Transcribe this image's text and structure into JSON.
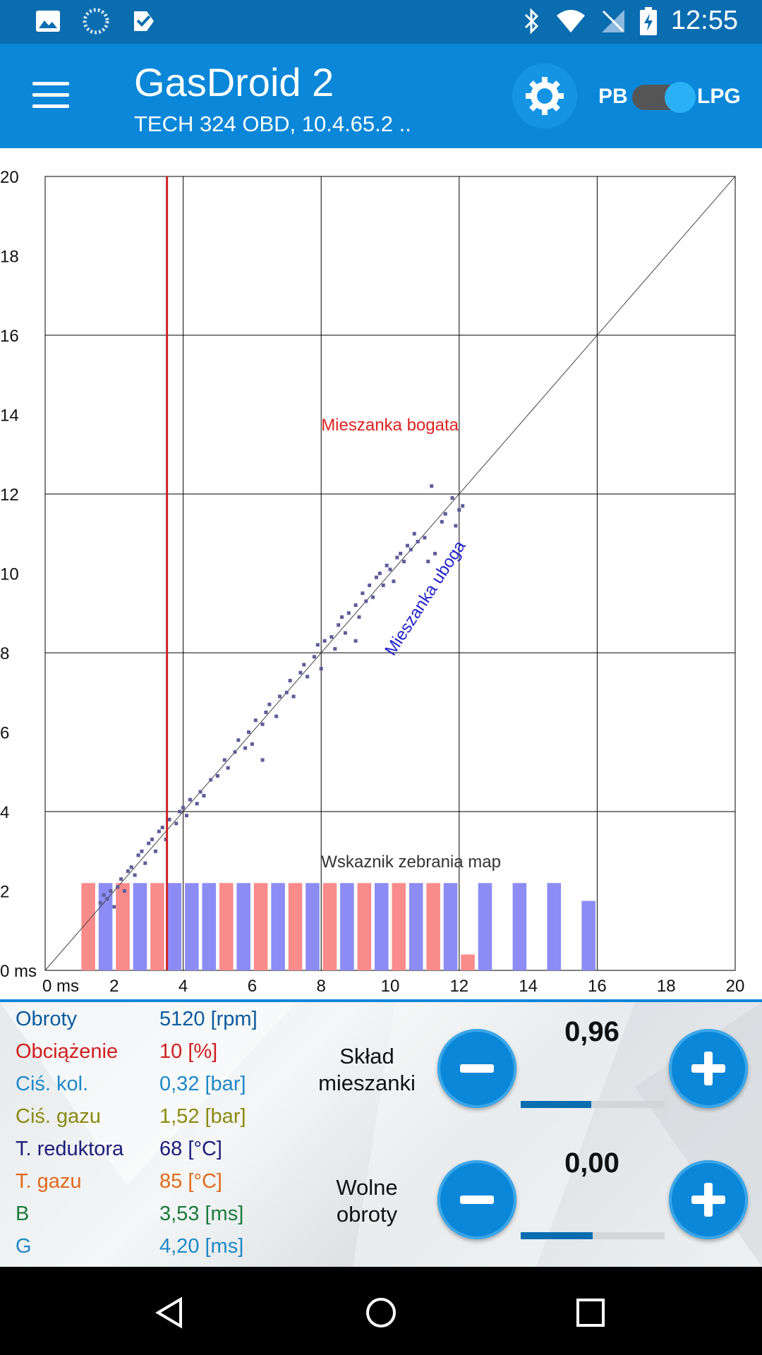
{
  "status_bar": {
    "time": "12:55",
    "left_icons": [
      "image-icon",
      "loading-icon",
      "check-icon"
    ],
    "right_icons": [
      "bluetooth-icon",
      "wifi-icon",
      "no-sim-icon",
      "battery-charging-icon"
    ]
  },
  "app_bar": {
    "title": "GasDroid 2",
    "subtitle": "TECH 324 OBD, 10.4.65.2 ..",
    "pb_label": "PB",
    "lpg_label": "LPG",
    "fuel_toggle_on": true
  },
  "chart_data": {
    "type": "scatter",
    "xlim": [
      0,
      20
    ],
    "ylim": [
      0,
      20
    ],
    "x_ticks": [
      "0 ms",
      "2",
      "4",
      "6",
      "8",
      "10",
      "12",
      "14",
      "16",
      "18",
      "20"
    ],
    "y_ticks": [
      "0 ms",
      "2",
      "4",
      "6",
      "8",
      "10",
      "12",
      "14",
      "16",
      "18",
      "20"
    ],
    "grid": true,
    "reference_line": [
      [
        0,
        0
      ],
      [
        20,
        20
      ]
    ],
    "current_x": 3.53,
    "annotations": {
      "rich": "Mieszanka bogata",
      "lean": "Mieszanka uboga",
      "map_indicator": "Wskaznik zebrania map"
    },
    "map_bars": {
      "x": [
        1.25,
        1.75,
        2.25,
        2.75,
        3.25,
        3.75,
        4.25,
        4.75,
        5.25,
        5.75,
        6.25,
        6.75,
        7.25,
        7.75,
        8.25,
        8.75,
        9.25,
        9.75,
        10.25,
        10.75,
        11.25,
        11.75,
        12.25,
        12.75,
        13.75,
        14.75,
        15.75
      ],
      "values": [
        2.2,
        2.2,
        2.2,
        2.2,
        2.2,
        2.2,
        2.2,
        2.2,
        2.2,
        2.2,
        2.2,
        2.2,
        2.2,
        2.2,
        2.2,
        2.2,
        2.2,
        2.2,
        2.2,
        2.2,
        2.2,
        2.2,
        0.4,
        2.2,
        2.2,
        2.2,
        1.75
      ],
      "colors": [
        "#fa8b8b",
        "#8c8cf4",
        "#fa8b8b",
        "#8c8cf4",
        "#fa8b8b",
        "#8c8cf4",
        "#8c8cf4",
        "#8c8cf4",
        "#fa8b8b",
        "#8c8cf4",
        "#fa8b8b",
        "#8c8cf4",
        "#fa8b8b",
        "#8c8cf4",
        "#fa8b8b",
        "#8c8cf4",
        "#fa8b8b",
        "#8c8cf4",
        "#fa8b8b",
        "#8c8cf4",
        "#fa8b8b",
        "#8c8cf4",
        "#fa8b8b",
        "#8c8cf4",
        "#8c8cf4",
        "#8c8cf4",
        "#8c8cf4"
      ]
    },
    "points": [
      [
        1.6,
        1.7
      ],
      [
        1.7,
        1.9
      ],
      [
        1.8,
        1.8
      ],
      [
        1.9,
        2.0
      ],
      [
        2.0,
        1.6
      ],
      [
        2.1,
        2.1
      ],
      [
        2.2,
        2.3
      ],
      [
        2.3,
        2.0
      ],
      [
        2.4,
        2.5
      ],
      [
        2.5,
        2.6
      ],
      [
        2.6,
        2.4
      ],
      [
        2.7,
        2.9
      ],
      [
        2.8,
        3.0
      ],
      [
        2.9,
        2.7
      ],
      [
        3.0,
        3.2
      ],
      [
        3.1,
        3.3
      ],
      [
        3.2,
        3.0
      ],
      [
        3.3,
        3.5
      ],
      [
        3.4,
        3.6
      ],
      [
        3.5,
        3.3
      ],
      [
        3.6,
        3.8
      ],
      [
        3.8,
        3.7
      ],
      [
        3.9,
        4.0
      ],
      [
        4.0,
        4.1
      ],
      [
        4.1,
        3.9
      ],
      [
        4.2,
        4.3
      ],
      [
        4.4,
        4.2
      ],
      [
        4.5,
        4.5
      ],
      [
        4.6,
        4.4
      ],
      [
        4.8,
        4.8
      ],
      [
        5.0,
        4.9
      ],
      [
        5.2,
        5.3
      ],
      [
        5.3,
        5.1
      ],
      [
        5.5,
        5.5
      ],
      [
        5.6,
        5.8
      ],
      [
        5.8,
        5.6
      ],
      [
        5.9,
        6.0
      ],
      [
        6.0,
        5.7
      ],
      [
        6.1,
        6.3
      ],
      [
        6.3,
        6.2
      ],
      [
        6.4,
        6.5
      ],
      [
        6.5,
        6.7
      ],
      [
        6.7,
        6.4
      ],
      [
        6.8,
        6.9
      ],
      [
        7.0,
        7.0
      ],
      [
        7.1,
        7.3
      ],
      [
        7.2,
        6.9
      ],
      [
        7.4,
        7.5
      ],
      [
        7.5,
        7.7
      ],
      [
        7.6,
        7.4
      ],
      [
        7.8,
        7.9
      ],
      [
        7.9,
        8.2
      ],
      [
        8.0,
        7.6
      ],
      [
        8.1,
        8.3
      ],
      [
        8.3,
        8.4
      ],
      [
        8.4,
        8.1
      ],
      [
        8.5,
        8.7
      ],
      [
        8.6,
        8.9
      ],
      [
        8.7,
        8.5
      ],
      [
        8.8,
        9.0
      ],
      [
        9.0,
        9.2
      ],
      [
        9.1,
        8.9
      ],
      [
        9.2,
        9.5
      ],
      [
        9.3,
        9.3
      ],
      [
        9.4,
        9.7
      ],
      [
        9.5,
        9.4
      ],
      [
        9.6,
        9.9
      ],
      [
        9.7,
        10.0
      ],
      [
        9.8,
        9.7
      ],
      [
        9.9,
        10.2
      ],
      [
        10.0,
        10.1
      ],
      [
        10.1,
        9.8
      ],
      [
        10.2,
        10.4
      ],
      [
        10.3,
        10.5
      ],
      [
        10.4,
        10.3
      ],
      [
        10.5,
        10.7
      ],
      [
        10.6,
        10.6
      ],
      [
        10.7,
        11.0
      ],
      [
        10.8,
        10.8
      ],
      [
        11.0,
        10.9
      ],
      [
        11.1,
        10.3
      ],
      [
        11.3,
        10.5
      ],
      [
        11.5,
        11.3
      ],
      [
        11.6,
        11.5
      ],
      [
        11.8,
        11.9
      ],
      [
        12.0,
        11.6
      ],
      [
        11.9,
        11.2
      ],
      [
        12.1,
        11.7
      ],
      [
        11.2,
        12.2
      ],
      [
        6.3,
        5.3
      ],
      [
        9.0,
        8.3
      ]
    ]
  },
  "params": [
    {
      "label": "Obroty",
      "value": "5120 [rpm]",
      "color": "#0b5a9e"
    },
    {
      "label": "Obciążenie",
      "value": "10 [%]",
      "color": "#d01e1e"
    },
    {
      "label": "Ciś. kol.",
      "value": "0,32 [bar]",
      "color": "#1e88c8"
    },
    {
      "label": "Ciś. gazu",
      "value": "1,52 [bar]",
      "color": "#8a8a10"
    },
    {
      "label": "T. reduktora",
      "value": "68 [°C]",
      "color": "#1c1c7a"
    },
    {
      "label": "T. gazu",
      "value": "85 [°C]",
      "color": "#e06a1a"
    },
    {
      "label": "B",
      "value": "3,53 [ms]",
      "color": "#1a7a3a"
    },
    {
      "label": "G",
      "value": "4,20 [ms]",
      "color": "#1e88c8"
    }
  ],
  "controls": {
    "mixture": {
      "label_line1": "Skład",
      "label_line2": "mieszanki",
      "value": "0,96",
      "level": 0.49
    },
    "idle": {
      "label_line1": "Wolne",
      "label_line2": "obroty",
      "value": "0,00",
      "level": 0.5
    }
  },
  "colors": {
    "app_bar": "#0a87d8",
    "status_bar": "#0a6db0",
    "current_line": "#cc2222",
    "points": "#5d5d9a"
  }
}
